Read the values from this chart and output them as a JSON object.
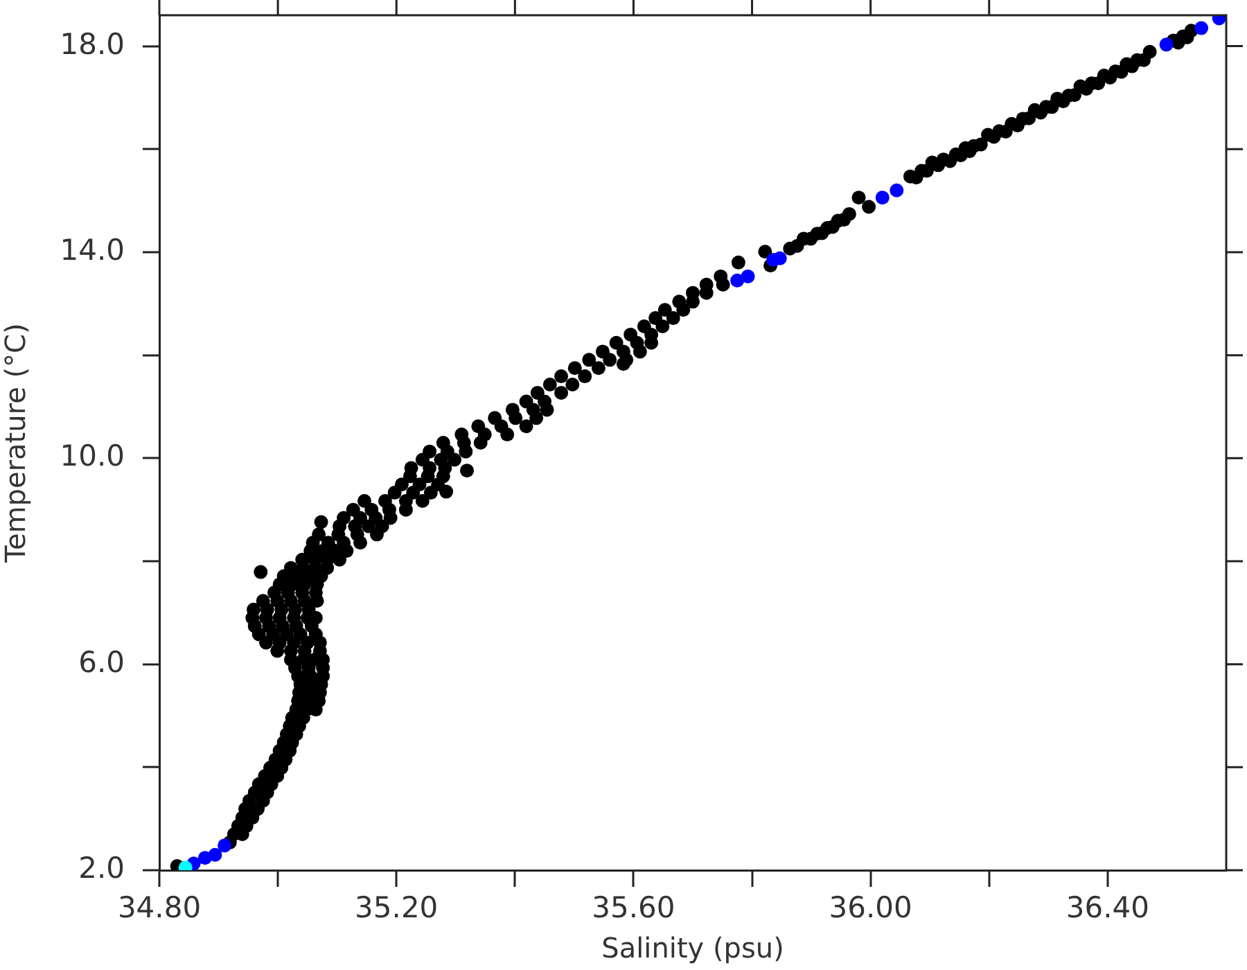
{
  "chart_data": {
    "type": "scatter",
    "xlabel": "Salinity (psu)",
    "ylabel": "Temperature (°C)",
    "marker": "circle",
    "xlim": [
      34.8,
      36.6
    ],
    "ylim": [
      2,
      18.6
    ],
    "xticks": [
      {
        "value": 34.8,
        "label": "34.80"
      },
      {
        "value": 35.0,
        "label": null
      },
      {
        "value": 35.2,
        "label": "35.20"
      },
      {
        "value": 35.4,
        "label": null
      },
      {
        "value": 35.6,
        "label": "35.60"
      },
      {
        "value": 35.8,
        "label": null
      },
      {
        "value": 36.0,
        "label": "36.00"
      },
      {
        "value": 36.2,
        "label": null
      },
      {
        "value": 36.4,
        "label": "36.40"
      }
    ],
    "yticks": [
      {
        "value": 2,
        "label": "2.0"
      },
      {
        "value": 4,
        "label": null
      },
      {
        "value": 6,
        "label": "6.0"
      },
      {
        "value": 8,
        "label": null
      },
      {
        "value": 10,
        "label": "10.0"
      },
      {
        "value": 12,
        "label": null
      },
      {
        "value": 14,
        "label": "14.0"
      },
      {
        "value": 16,
        "label": null
      },
      {
        "value": 18,
        "label": "18.0"
      }
    ],
    "series": [
      {
        "color": "#000000",
        "x": [
          34.83,
          34.919,
          34.926,
          34.94,
          34.933,
          34.947,
          34.94,
          34.957,
          34.945,
          34.966,
          34.952,
          34.975,
          34.961,
          34.982,
          34.968,
          34.989,
          34.978,
          34.999,
          34.987,
          35.006,
          34.996,
          35.013,
          35.003,
          35.02,
          35.01,
          35.024,
          35.015,
          35.031,
          35.02,
          35.036,
          35.024,
          35.043,
          35.031,
          35.048,
          35.064,
          35.034,
          35.052,
          35.069,
          35.036,
          35.055,
          35.071,
          35.038,
          35.057,
          35.073,
          35.034,
          35.055,
          35.076,
          35.029,
          35.052,
          35.076,
          35.022,
          35.043,
          35.062,
          35.076,
          34.999,
          35.022,
          35.045,
          35.071,
          34.98,
          35.003,
          35.027,
          35.05,
          35.071,
          34.968,
          34.992,
          35.015,
          35.038,
          35.064,
          34.961,
          34.985,
          35.008,
          35.031,
          35.057,
          34.957,
          34.98,
          35.003,
          35.027,
          35.05,
          35.064,
          34.959,
          34.982,
          35.006,
          35.029,
          35.052,
          34.975,
          34.999,
          35.022,
          35.045,
          35.066,
          34.994,
          35.017,
          35.041,
          35.064,
          35.003,
          35.024,
          35.045,
          35.066,
          35.01,
          35.031,
          35.052,
          35.073,
          34.971,
          35.022,
          35.043,
          35.064,
          35.083,
          35.041,
          35.062,
          35.083,
          35.104,
          35.055,
          35.076,
          35.097,
          35.116,
          35.059,
          35.085,
          35.111,
          35.139,
          35.069,
          35.102,
          35.134,
          35.167,
          35.104,
          35.13,
          35.153,
          35.176,
          35.073,
          35.111,
          35.139,
          35.165,
          35.19,
          35.127,
          35.158,
          35.188,
          35.216,
          35.146,
          35.181,
          35.216,
          35.244,
          35.197,
          35.228,
          35.258,
          35.284,
          35.209,
          35.239,
          35.27,
          35.223,
          35.253,
          35.279,
          35.319,
          35.225,
          35.256,
          35.282,
          35.244,
          35.275,
          35.298,
          35.256,
          35.286,
          35.317,
          35.279,
          35.314,
          35.342,
          35.31,
          35.349,
          35.387,
          35.338,
          35.377,
          35.419,
          35.366,
          35.401,
          35.436,
          35.396,
          35.431,
          35.454,
          35.419,
          35.45,
          35.438,
          35.478,
          35.459,
          35.497,
          35.478,
          35.518,
          35.501,
          35.541,
          35.583,
          35.525,
          35.56,
          35.588,
          35.548,
          35.583,
          35.611,
          35.571,
          35.606,
          35.63,
          35.595,
          35.63,
          35.618,
          35.649,
          35.637,
          35.667,
          35.653,
          35.684,
          35.677,
          35.7,
          35.7,
          35.723,
          35.723,
          35.751,
          35.747,
          35.777,
          35.822,
          35.831,
          35.864,
          35.876,
          35.887,
          35.899,
          35.91,
          35.918,
          35.927,
          35.936,
          35.945,
          35.955,
          35.964,
          35.98,
          35.997,
          36.067,
          36.077,
          36.086,
          36.095,
          36.104,
          36.114,
          36.123,
          36.134,
          36.144,
          36.152,
          36.16,
          36.167,
          36.174,
          36.186,
          36.198,
          36.208,
          36.217,
          36.228,
          36.238,
          36.248,
          36.257,
          36.267,
          36.277,
          36.287,
          36.296,
          36.306,
          36.315,
          36.325,
          36.334,
          36.344,
          36.354,
          36.364,
          36.373,
          36.384,
          36.394,
          36.404,
          36.413,
          36.423,
          36.432,
          36.441,
          36.45,
          36.461,
          36.471,
          36.511,
          36.519,
          36.527,
          36.534,
          36.541
        ],
        "values": [
          2.08,
          2.54,
          2.7,
          2.7,
          2.86,
          2.86,
          3.02,
          3.02,
          3.19,
          3.19,
          3.35,
          3.35,
          3.51,
          3.51,
          3.67,
          3.67,
          3.83,
          3.83,
          3.99,
          3.99,
          4.15,
          4.15,
          4.32,
          4.32,
          4.48,
          4.48,
          4.64,
          4.64,
          4.8,
          4.8,
          4.96,
          4.96,
          5.12,
          5.12,
          5.12,
          5.29,
          5.29,
          5.29,
          5.45,
          5.45,
          5.45,
          5.61,
          5.61,
          5.61,
          5.77,
          5.77,
          5.77,
          5.93,
          5.93,
          5.93,
          6.09,
          6.09,
          6.09,
          6.09,
          6.26,
          6.26,
          6.26,
          6.26,
          6.42,
          6.42,
          6.42,
          6.42,
          6.42,
          6.58,
          6.58,
          6.58,
          6.58,
          6.58,
          6.74,
          6.74,
          6.74,
          6.74,
          6.74,
          6.9,
          6.9,
          6.9,
          6.9,
          6.9,
          6.9,
          7.06,
          7.06,
          7.06,
          7.06,
          7.06,
          7.23,
          7.23,
          7.23,
          7.23,
          7.23,
          7.39,
          7.39,
          7.39,
          7.39,
          7.55,
          7.55,
          7.55,
          7.55,
          7.71,
          7.71,
          7.71,
          7.71,
          7.79,
          7.87,
          7.87,
          7.87,
          7.87,
          8.03,
          8.03,
          8.03,
          8.03,
          8.2,
          8.2,
          8.2,
          8.2,
          8.36,
          8.36,
          8.36,
          8.36,
          8.52,
          8.52,
          8.52,
          8.52,
          8.68,
          8.68,
          8.68,
          8.68,
          8.76,
          8.84,
          8.84,
          8.84,
          8.84,
          9.0,
          9.0,
          9.0,
          9.0,
          9.17,
          9.17,
          9.17,
          9.17,
          9.33,
          9.33,
          9.33,
          9.35,
          9.49,
          9.49,
          9.49,
          9.65,
          9.65,
          9.65,
          9.76,
          9.81,
          9.81,
          9.81,
          9.97,
          9.97,
          9.97,
          10.13,
          10.13,
          10.13,
          10.3,
          10.3,
          10.3,
          10.46,
          10.46,
          10.46,
          10.62,
          10.62,
          10.62,
          10.78,
          10.78,
          10.78,
          10.94,
          10.94,
          10.94,
          11.1,
          11.1,
          11.27,
          11.27,
          11.43,
          11.43,
          11.59,
          11.59,
          11.75,
          11.75,
          11.83,
          11.91,
          11.91,
          11.91,
          12.07,
          12.07,
          12.07,
          12.24,
          12.24,
          12.24,
          12.4,
          12.4,
          12.56,
          12.56,
          12.72,
          12.72,
          12.88,
          12.88,
          13.04,
          13.04,
          13.21,
          13.21,
          13.37,
          13.37,
          13.53,
          13.8,
          14.01,
          13.74,
          14.07,
          14.12,
          14.26,
          14.26,
          14.36,
          14.37,
          14.47,
          14.49,
          14.61,
          14.63,
          14.74,
          15.06,
          14.88,
          15.47,
          15.45,
          15.58,
          15.58,
          15.74,
          15.69,
          15.8,
          15.77,
          15.9,
          15.88,
          16.02,
          15.96,
          16.06,
          16.09,
          16.28,
          16.24,
          16.35,
          16.34,
          16.49,
          16.46,
          16.59,
          16.6,
          16.76,
          16.71,
          16.82,
          16.82,
          16.98,
          16.93,
          17.04,
          17.05,
          17.22,
          17.17,
          17.28,
          17.28,
          17.43,
          17.39,
          17.51,
          17.5,
          17.65,
          17.61,
          17.73,
          17.73,
          17.89,
          18.11,
          18.07,
          18.19,
          18.17,
          18.3
        ]
      },
      {
        "color": "#0000ff",
        "x": [
          34.858,
          34.877,
          34.894,
          34.91,
          35.775,
          35.793,
          35.836,
          35.847,
          36.02,
          36.044,
          36.499,
          36.558,
          36.588
        ],
        "values": [
          2.13,
          2.24,
          2.3,
          2.48,
          13.45,
          13.53,
          13.85,
          13.88,
          15.06,
          15.2,
          18.03,
          18.35,
          18.54
        ]
      },
      {
        "color": "#00ffff",
        "x": [
          34.844
        ],
        "values": [
          2.05
        ]
      }
    ]
  }
}
